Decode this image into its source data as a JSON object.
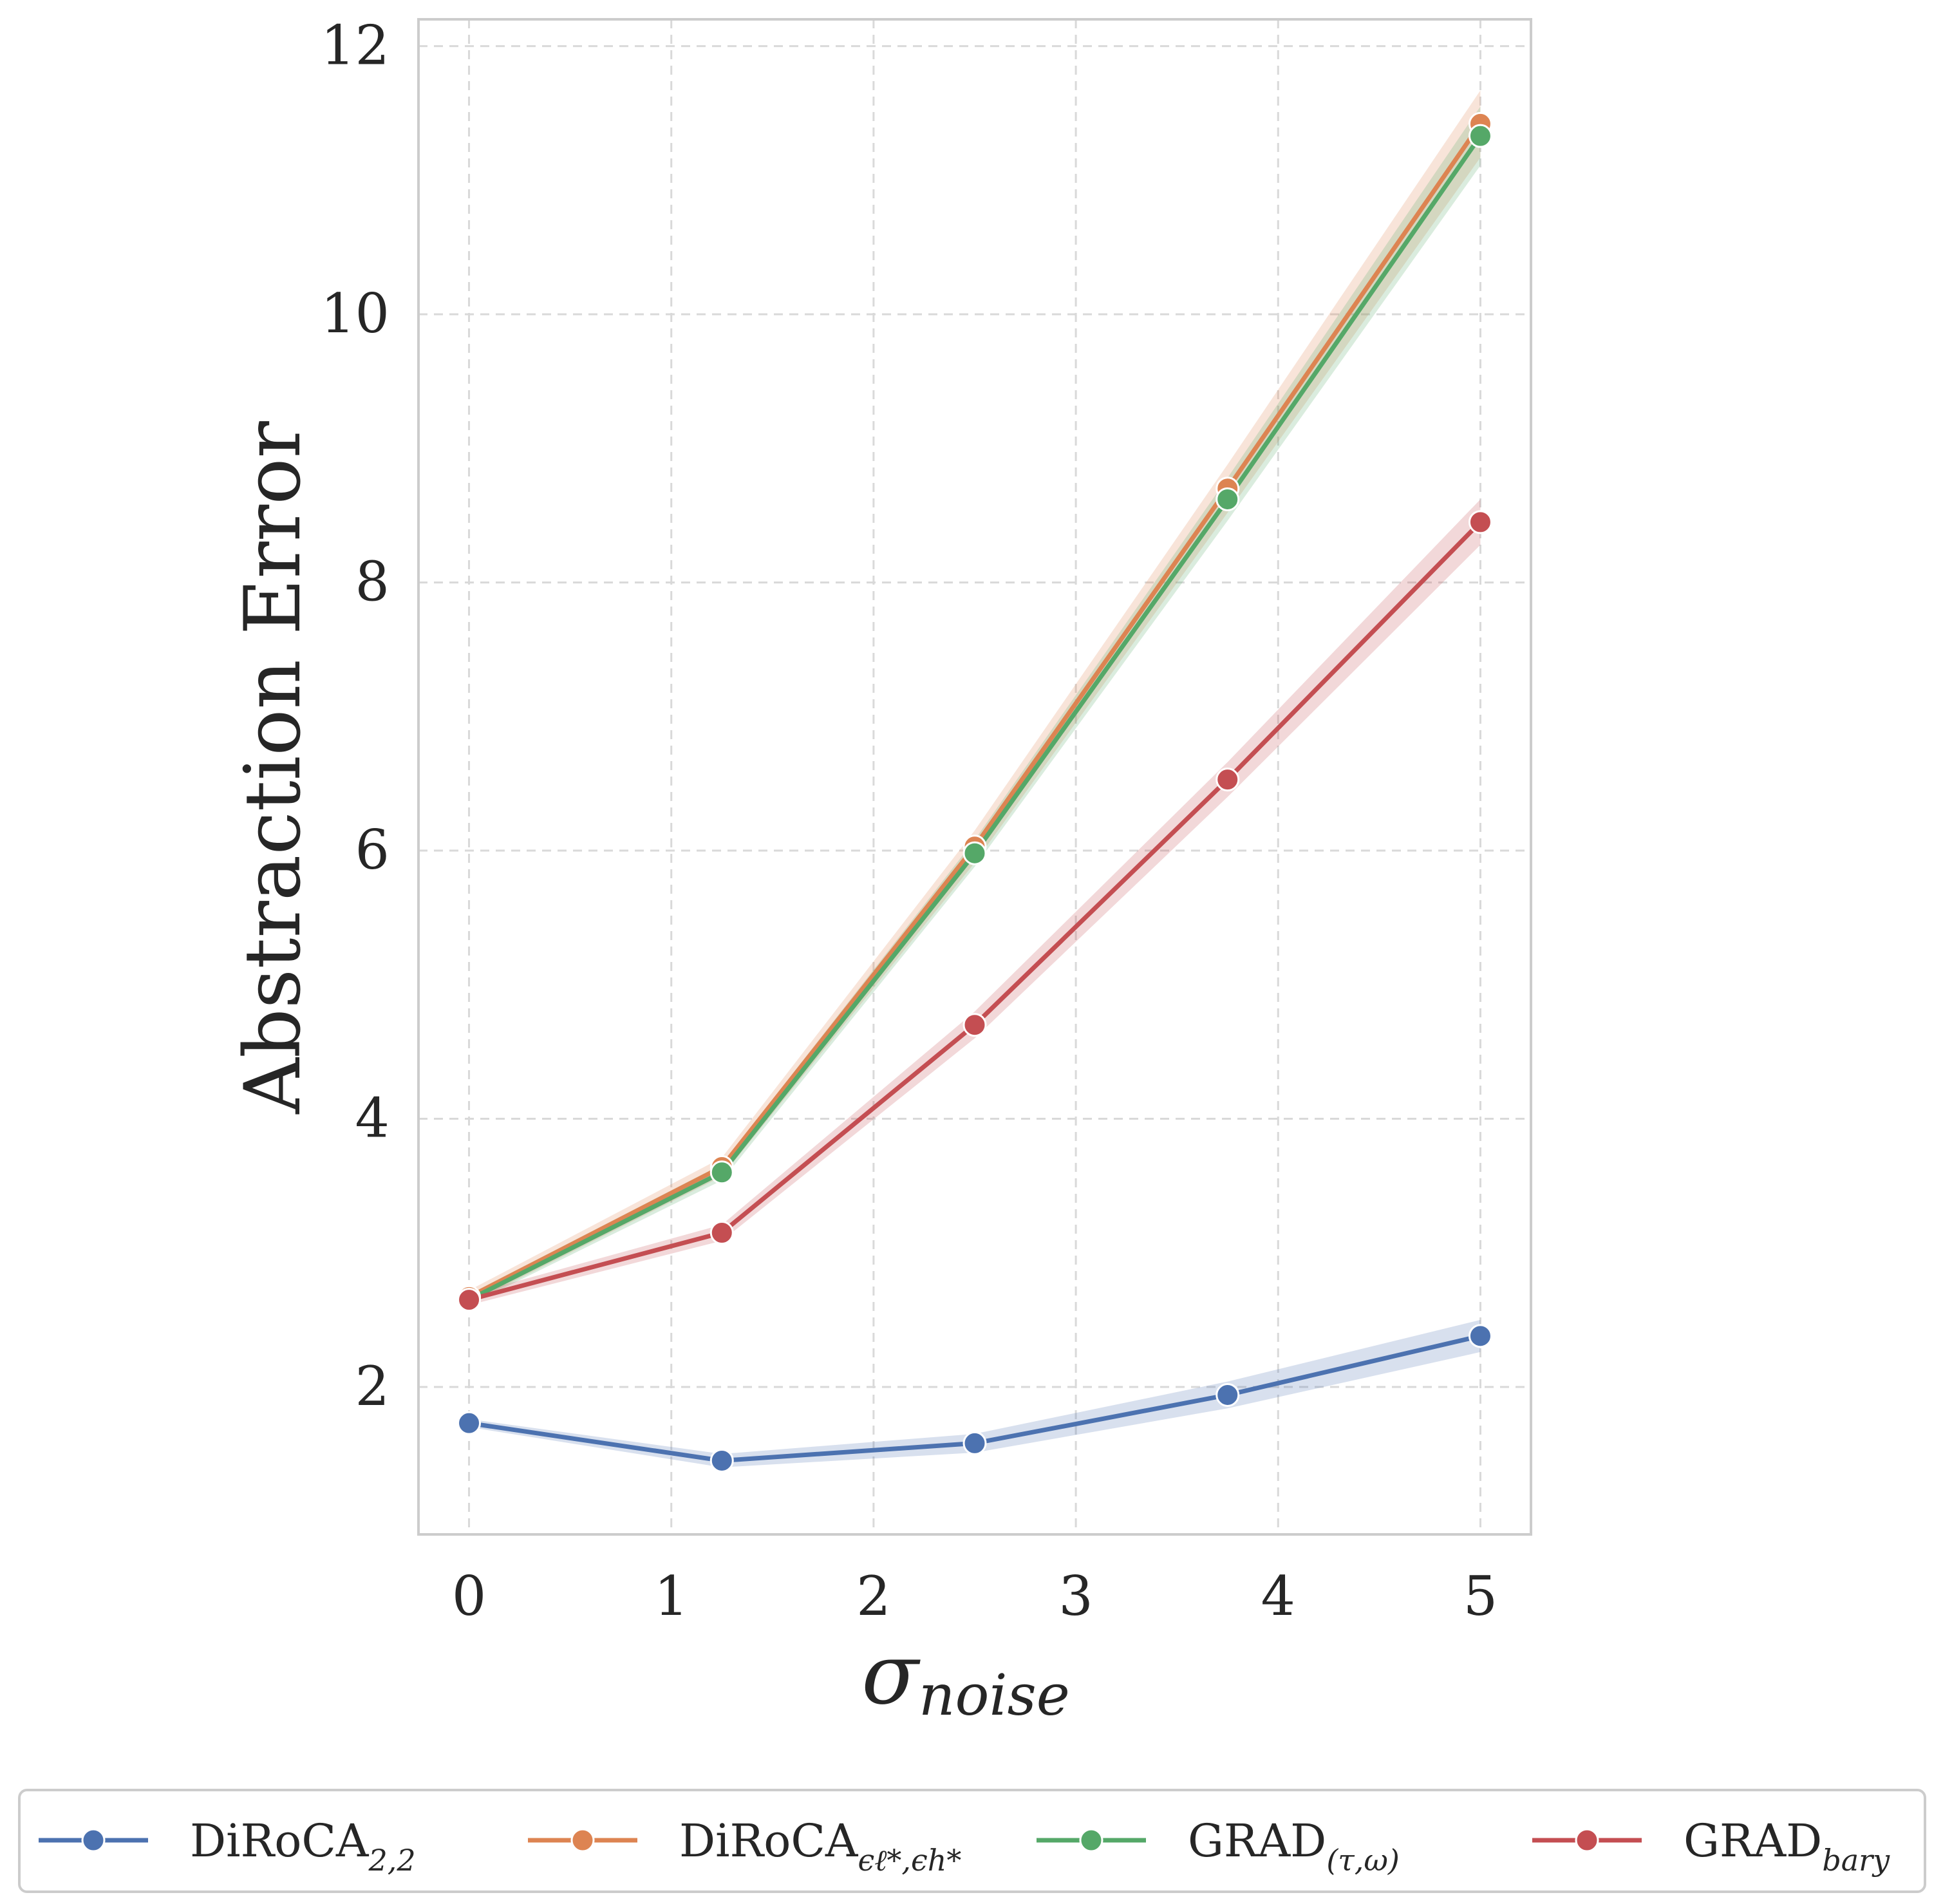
{
  "chart_data": {
    "type": "line",
    "title": "",
    "ylabel": "Abstraction Error",
    "xlabel": {
      "main": "σ",
      "sub": "noise"
    },
    "x": [
      0,
      1.25,
      2.5,
      3.75,
      5
    ],
    "xlim": [
      -0.25,
      5.25
    ],
    "ylim": [
      0.9,
      12.2
    ],
    "xticks": [
      "0",
      "1",
      "2",
      "3",
      "4",
      "5"
    ],
    "yticks": [
      "2",
      "4",
      "6",
      "8",
      "10",
      "12"
    ],
    "grid": true,
    "legend": "bottom",
    "series": [
      {
        "name": "DiRoCA",
        "sub": "2,2",
        "color": "#4c72b0",
        "values": [
          1.73,
          1.45,
          1.58,
          1.94,
          2.38
        ],
        "band": [
          0.03,
          0.05,
          0.07,
          0.1,
          0.12
        ]
      },
      {
        "name": "DiRoCA",
        "sub": "ϵℓ*,ϵh*",
        "color": "#dd8452",
        "values": [
          2.67,
          3.64,
          6.03,
          8.7,
          11.42
        ],
        "band": [
          0.05,
          0.07,
          0.12,
          0.18,
          0.25
        ]
      },
      {
        "name": "GRAD",
        "sub": "(τ,ω)",
        "color": "#55a868",
        "values": [
          2.65,
          3.6,
          5.98,
          8.62,
          11.33
        ],
        "band": [
          0.04,
          0.06,
          0.1,
          0.16,
          0.22
        ]
      },
      {
        "name": "GRAD",
        "sub": "bary",
        "color": "#c44e52",
        "values": [
          2.65,
          3.15,
          4.7,
          6.53,
          8.45
        ],
        "band": [
          0.04,
          0.06,
          0.1,
          0.13,
          0.17
        ]
      }
    ]
  }
}
